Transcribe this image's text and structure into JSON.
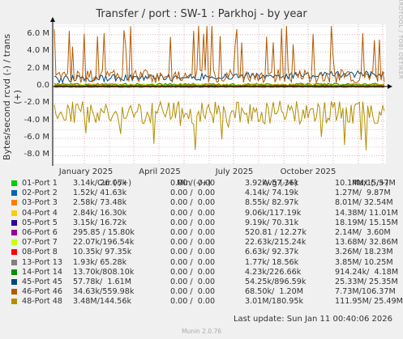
{
  "title": "Transfer / port : SW-1 : Parkhoj - by year",
  "watermark": "RRDTOOL / TOBI OETIKER",
  "footer": "Last update: Sun Jan 11 00:40:06 2026",
  "generator": "Munin 2.0.76",
  "legend_headers": {
    "cur": "Cur (-/+)",
    "min": "Min (-/+)",
    "avg": "Avg (-/+)",
    "max": "Max (-/+)"
  },
  "chart_data": {
    "type": "line",
    "ylabel": "Bytes/second rcvd (-) / trans (+)",
    "ylim": [
      -9000000,
      7200000
    ],
    "yticks": [
      {
        "value": 6000000,
        "label": "6.0 M"
      },
      {
        "value": 4000000,
        "label": "4.0 M"
      },
      {
        "value": 2000000,
        "label": "2.0 M"
      },
      {
        "value": 0,
        "label": "0.0"
      },
      {
        "value": -2000000,
        "label": "-2.0 M"
      },
      {
        "value": -4000000,
        "label": "-4.0 M"
      },
      {
        "value": -6000000,
        "label": "-6.0 M"
      },
      {
        "value": -8000000,
        "label": "-8.0 M"
      }
    ],
    "xticks": [
      "January 2025",
      "April 2025",
      "July 2025",
      "October 2025"
    ],
    "series": [
      {
        "name": "01-Port 1",
        "color": "#00cc00",
        "cur": "3.14k/ 26.05k",
        "min": "0.00 /  0.00",
        "avg": "3.92k/ 57.36k",
        "max": "10.14M/15.57M",
        "avg_out": 57360,
        "avg_in": 3920
      },
      {
        "name": "02-Port 2",
        "color": "#0066b3",
        "cur": "1.52k/ 41.63k",
        "min": "0.00 /  0.00",
        "avg": "4.14k/ 74.19k",
        "max": "1.27M/  9.87M",
        "avg_out": 74190,
        "avg_in": 4140
      },
      {
        "name": "03-Port 3",
        "color": "#ff8000",
        "cur": "2.58k/ 73.48k",
        "min": "0.00 /  0.00",
        "avg": "8.55k/ 82.97k",
        "max": "8.01M/ 32.54M",
        "avg_out": 82970,
        "avg_in": 8550
      },
      {
        "name": "04-Port 4",
        "color": "#ffcc00",
        "cur": "2.84k/ 16.30k",
        "min": "0.00 /  0.00",
        "avg": "9.06k/117.19k",
        "max": "14.38M/ 11.01M",
        "avg_out": 117190,
        "avg_in": 9060
      },
      {
        "name": "05-Port 5",
        "color": "#330099",
        "cur": "3.15k/ 16.72k",
        "min": "0.00 /  0.00",
        "avg": "9.19k/ 70.31k",
        "max": "18.19M/ 15.15M",
        "avg_out": 70310,
        "avg_in": 9190
      },
      {
        "name": "06-Port 6",
        "color": "#990099",
        "cur": "295.85 / 15.80k",
        "min": "0.00 /  0.00",
        "avg": "520.81 / 12.27k",
        "max": "2.14M/  3.60M",
        "avg_out": 12270,
        "avg_in": 520
      },
      {
        "name": "07-Port 7",
        "color": "#ccff00",
        "cur": "22.07k/196.54k",
        "min": "0.00 /  0.00",
        "avg": "22.63k/215.24k",
        "max": "13.68M/ 32.86M",
        "avg_out": 215240,
        "avg_in": 22630
      },
      {
        "name": "08-Port 8",
        "color": "#ff0000",
        "cur": "10.35k/ 97.35k",
        "min": "0.00 /  0.00",
        "avg": "6.63k/ 92.37k",
        "max": "3.26M/ 18.23M",
        "avg_out": 92370,
        "avg_in": 6630
      },
      {
        "name": "13-Port 13",
        "color": "#808080",
        "cur": "1.93k/ 65.28k",
        "min": "0.00 /  0.00",
        "avg": "1.77k/ 18.56k",
        "max": "3.85M/ 10.25M",
        "avg_out": 18560,
        "avg_in": 1770
      },
      {
        "name": "14-Port 14",
        "color": "#008f00",
        "cur": "13.70k/808.10k",
        "min": "0.00 /  0.00",
        "avg": "4.23k/226.66k",
        "max": "914.24k/  4.18M",
        "avg_out": 226660,
        "avg_in": 4230
      },
      {
        "name": "45-Port 45",
        "color": "#00487d",
        "cur": "57.78k/  1.61M",
        "min": "0.00 /  0.00",
        "avg": "54.25k/896.59k",
        "max": "25.33M/ 25.35M",
        "avg_out": 896590,
        "avg_in": 54250
      },
      {
        "name": "46-Port 46",
        "color": "#b35a00",
        "cur": "34.63k/559.98k",
        "min": "0.00 /  0.00",
        "avg": "68.50k/  1.20M",
        "max": "7.73M/106.37M",
        "avg_out": 1200000,
        "avg_in": 68500
      },
      {
        "name": "48-Port 48",
        "color": "#b38f00",
        "cur": "3.48M/144.56k",
        "min": "0.00 /  0.00",
        "avg": "3.01M/180.95k",
        "max": "111.95M/ 25.49M",
        "avg_out": 180950,
        "avg_in": 3010000
      }
    ]
  }
}
